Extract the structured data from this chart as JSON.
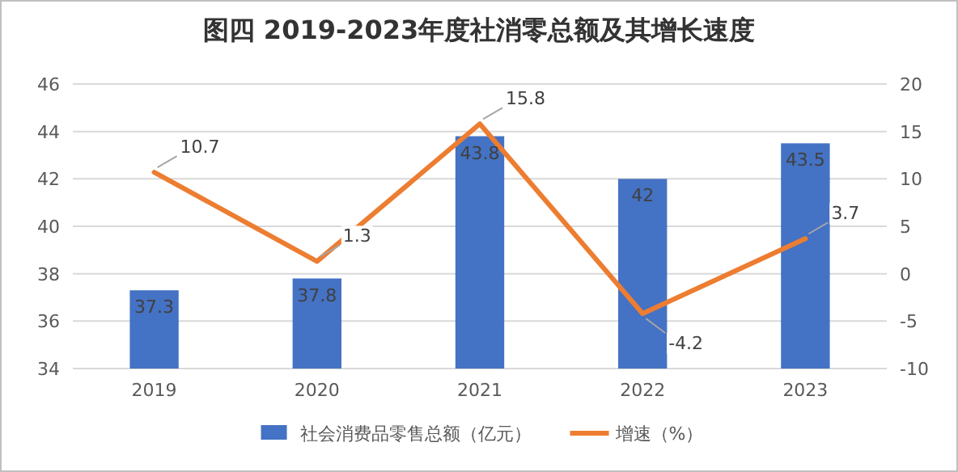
{
  "chart_data": {
    "type": "bar",
    "title": "图四  2019-2023年度社消零总额及其增长速度",
    "categories": [
      "2019",
      "2020",
      "2021",
      "2022",
      "2023"
    ],
    "series": [
      {
        "name": "社会消费品零售总额（亿元）",
        "color": "#4472c4",
        "values": [
          37.3,
          37.8,
          43.8,
          42,
          43.5
        ]
      },
      {
        "name": "增速（%）",
        "type": "line",
        "axis": "y2",
        "color": "#ed7d31",
        "values": [
          10.7,
          1.3,
          15.8,
          -4.2,
          3.7
        ]
      }
    ],
    "ylim": [
      34,
      46
    ],
    "yticks": [
      34,
      36,
      38,
      40,
      42,
      44,
      46
    ],
    "y2lim": [
      -10,
      20
    ],
    "y2ticks": [
      -10,
      -5,
      0,
      5,
      10,
      15,
      20
    ],
    "grid": "y",
    "legend": "bottom",
    "data_labels": true,
    "marker": "none",
    "line_style": "solid"
  }
}
